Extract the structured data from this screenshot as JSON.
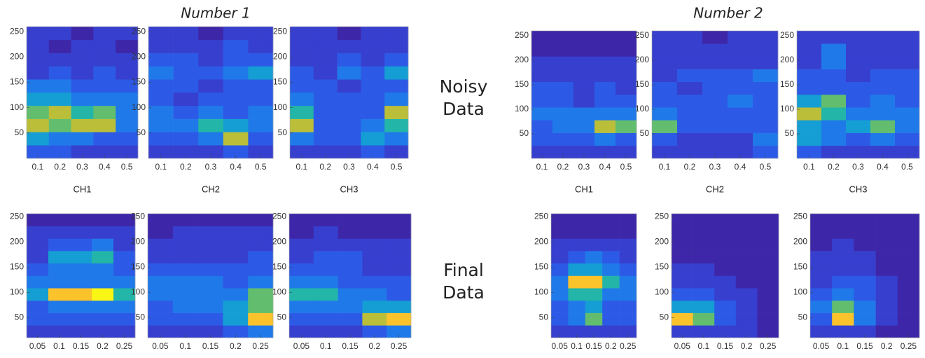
{
  "titles": [
    "Number 1",
    "Number 2"
  ],
  "row_labels": [
    "Noisy Data",
    "Final Data"
  ],
  "chart_data": [
    {
      "type": "heatmap",
      "xlabel": "CH1",
      "xlim": [
        0.05,
        0.55
      ],
      "ylim": [
        0,
        260
      ],
      "xticks": [
        0.1,
        0.2,
        0.3,
        0.4,
        0.5
      ],
      "yticks": [
        50,
        100,
        150,
        200,
        250
      ],
      "z": [
        [
          2,
          2,
          1,
          1,
          1
        ],
        [
          4,
          3,
          3,
          2,
          2
        ],
        [
          7,
          6,
          7,
          7,
          3
        ],
        [
          6,
          7,
          5,
          6,
          3
        ],
        [
          4,
          4,
          3,
          3,
          3
        ],
        [
          3,
          3,
          2,
          2,
          2
        ],
        [
          1,
          2,
          1,
          2,
          1
        ],
        [
          1,
          1,
          1,
          1,
          1
        ],
        [
          1,
          0,
          1,
          1,
          0
        ],
        [
          1,
          1,
          0,
          1,
          1
        ]
      ]
    },
    {
      "type": "heatmap",
      "xlabel": "CH2",
      "xlim": [
        0.05,
        0.55
      ],
      "ylim": [
        0,
        260
      ],
      "xticks": [
        0.1,
        0.2,
        0.3,
        0.4,
        0.5
      ],
      "yticks": [
        50,
        100,
        150,
        200,
        250
      ],
      "z": [
        [
          1,
          1,
          1,
          2,
          1
        ],
        [
          2,
          2,
          3,
          7,
          2
        ],
        [
          3,
          3,
          5,
          4,
          3
        ],
        [
          3,
          2,
          3,
          2,
          3
        ],
        [
          2,
          1,
          2,
          2,
          2
        ],
        [
          2,
          2,
          1,
          2,
          2
        ],
        [
          3,
          2,
          2,
          3,
          4
        ],
        [
          2,
          2,
          1,
          2,
          2
        ],
        [
          1,
          1,
          1,
          2,
          1
        ],
        [
          1,
          1,
          0,
          1,
          1
        ]
      ]
    },
    {
      "type": "heatmap",
      "xlabel": "CH3",
      "xlim": [
        0.05,
        0.55
      ],
      "ylim": [
        0,
        260
      ],
      "xticks": [
        0.1,
        0.2,
        0.3,
        0.4,
        0.5
      ],
      "yticks": [
        50,
        100,
        150,
        200,
        250
      ],
      "z": [
        [
          1,
          1,
          1,
          2,
          1
        ],
        [
          3,
          2,
          2,
          4,
          3
        ],
        [
          7,
          2,
          2,
          3,
          5
        ],
        [
          5,
          2,
          2,
          2,
          7
        ],
        [
          3,
          2,
          2,
          2,
          3
        ],
        [
          2,
          2,
          1,
          2,
          2
        ],
        [
          2,
          1,
          3,
          2,
          4
        ],
        [
          1,
          1,
          2,
          1,
          2
        ],
        [
          1,
          1,
          1,
          1,
          1
        ],
        [
          1,
          1,
          0,
          1,
          1
        ]
      ]
    },
    {
      "type": "heatmap",
      "xlabel": "CH1",
      "xlim": [
        0.05,
        0.55
      ],
      "ylim": [
        0,
        260
      ],
      "xticks": [
        0.1,
        0.2,
        0.3,
        0.4,
        0.5
      ],
      "yticks": [
        50,
        100,
        150,
        200,
        250
      ],
      "z": [
        [
          1,
          1,
          1,
          1,
          1
        ],
        [
          2,
          2,
          2,
          3,
          2
        ],
        [
          2,
          3,
          3,
          7,
          6
        ],
        [
          3,
          3,
          3,
          3,
          3
        ],
        [
          2,
          2,
          1,
          2,
          2
        ],
        [
          2,
          2,
          1,
          2,
          1
        ],
        [
          1,
          1,
          1,
          1,
          1
        ],
        [
          1,
          1,
          1,
          1,
          1
        ],
        [
          0,
          0,
          0,
          0,
          0
        ],
        [
          0,
          0,
          0,
          0,
          0
        ]
      ]
    },
    {
      "type": "heatmap",
      "xlabel": "CH2",
      "xlim": [
        0.05,
        0.55
      ],
      "ylim": [
        0,
        260
      ],
      "xticks": [
        0.1,
        0.2,
        0.3,
        0.4,
        0.5
      ],
      "yticks": [
        50,
        100,
        150,
        200,
        250
      ],
      "z": [
        [
          1,
          1,
          1,
          1,
          2
        ],
        [
          2,
          1,
          1,
          1,
          3
        ],
        [
          6,
          2,
          2,
          2,
          2
        ],
        [
          3,
          2,
          2,
          2,
          2
        ],
        [
          2,
          2,
          2,
          3,
          2
        ],
        [
          2,
          1,
          2,
          2,
          2
        ],
        [
          1,
          2,
          2,
          2,
          3
        ],
        [
          1,
          1,
          1,
          1,
          1
        ],
        [
          1,
          1,
          1,
          1,
          1
        ],
        [
          1,
          1,
          0,
          1,
          1
        ]
      ]
    },
    {
      "type": "heatmap",
      "xlabel": "CH3",
      "xlim": [
        0.05,
        0.55
      ],
      "ylim": [
        0,
        260
      ],
      "xticks": [
        0.1,
        0.2,
        0.3,
        0.4,
        0.5
      ],
      "yticks": [
        50,
        100,
        150,
        200,
        250
      ],
      "z": [
        [
          2,
          1,
          1,
          1,
          1
        ],
        [
          4,
          3,
          2,
          3,
          2
        ],
        [
          4,
          3,
          4,
          6,
          3
        ],
        [
          7,
          5,
          3,
          3,
          3
        ],
        [
          4,
          6,
          2,
          3,
          2
        ],
        [
          2,
          2,
          2,
          2,
          2
        ],
        [
          2,
          2,
          1,
          2,
          2
        ],
        [
          1,
          3,
          1,
          1,
          1
        ],
        [
          1,
          3,
          1,
          1,
          1
        ],
        [
          1,
          1,
          1,
          1,
          1
        ]
      ]
    },
    {
      "type": "heatmap",
      "xlim": [
        0.025,
        0.275
      ],
      "ylim": [
        10,
        256
      ],
      "xticks": [
        0.05,
        0.1,
        0.15,
        0.2,
        0.25
      ],
      "yticks": [
        50,
        100,
        150,
        200,
        250
      ],
      "z": [
        [
          1,
          1,
          1,
          1,
          1
        ],
        [
          2,
          2,
          2,
          2,
          2
        ],
        [
          2,
          3,
          3,
          3,
          3
        ],
        [
          4,
          8,
          8,
          9,
          5
        ],
        [
          3,
          3,
          3,
          3,
          3
        ],
        [
          2,
          3,
          3,
          3,
          2
        ],
        [
          1,
          4,
          4,
          5,
          2
        ],
        [
          1,
          2,
          2,
          3,
          1
        ],
        [
          1,
          1,
          1,
          1,
          1
        ],
        [
          0,
          0,
          0,
          0,
          0
        ]
      ]
    },
    {
      "type": "heatmap",
      "xlim": [
        0.025,
        0.275
      ],
      "ylim": [
        10,
        256
      ],
      "xticks": [
        0.05,
        0.1,
        0.15,
        0.2,
        0.25
      ],
      "yticks": [
        50,
        100,
        150,
        200,
        250
      ],
      "z": [
        [
          1,
          1,
          1,
          2,
          3
        ],
        [
          2,
          2,
          2,
          4,
          8
        ],
        [
          2,
          3,
          3,
          4,
          6
        ],
        [
          3,
          3,
          3,
          3,
          6
        ],
        [
          3,
          3,
          3,
          2,
          3
        ],
        [
          2,
          2,
          2,
          2,
          2
        ],
        [
          1,
          1,
          1,
          1,
          2
        ],
        [
          1,
          1,
          1,
          1,
          1
        ],
        [
          0,
          1,
          1,
          1,
          1
        ],
        [
          0,
          0,
          0,
          0,
          0
        ]
      ]
    },
    {
      "type": "heatmap",
      "xlim": [
        0.025,
        0.275
      ],
      "ylim": [
        10,
        256
      ],
      "xticks": [
        0.05,
        0.1,
        0.15,
        0.2,
        0.25
      ],
      "yticks": [
        50,
        100,
        150,
        200,
        250
      ],
      "z": [
        [
          1,
          1,
          1,
          2,
          3
        ],
        [
          2,
          2,
          2,
          7,
          8
        ],
        [
          3,
          3,
          3,
          4,
          4
        ],
        [
          5,
          5,
          3,
          3,
          2
        ],
        [
          3,
          3,
          2,
          2,
          2
        ],
        [
          2,
          2,
          2,
          1,
          1
        ],
        [
          1,
          2,
          2,
          1,
          1
        ],
        [
          1,
          1,
          1,
          1,
          1
        ],
        [
          0,
          1,
          0,
          0,
          0
        ],
        [
          0,
          0,
          0,
          0,
          0
        ]
      ]
    },
    {
      "type": "heatmap",
      "xlim": [
        0.025,
        0.275
      ],
      "ylim": [
        10,
        256
      ],
      "xticks": [
        0.05,
        0.1,
        0.15,
        0.2,
        0.25
      ],
      "yticks": [
        50,
        100,
        150,
        200,
        250
      ],
      "z": [
        [
          1,
          1,
          1,
          1,
          1
        ],
        [
          2,
          3,
          6,
          2,
          2
        ],
        [
          2,
          3,
          4,
          2,
          2
        ],
        [
          3,
          5,
          5,
          3,
          3
        ],
        [
          3,
          8,
          8,
          5,
          3
        ],
        [
          2,
          4,
          4,
          3,
          2
        ],
        [
          1,
          2,
          3,
          2,
          1
        ],
        [
          1,
          1,
          1,
          1,
          1
        ],
        [
          0,
          0,
          0,
          0,
          0
        ],
        [
          0,
          0,
          0,
          0,
          0
        ]
      ]
    },
    {
      "type": "heatmap",
      "xlim": [
        0.025,
        0.275
      ],
      "ylim": [
        10,
        256
      ],
      "xticks": [
        0.05,
        0.1,
        0.15,
        0.2,
        0.25
      ],
      "yticks": [
        50,
        100,
        150,
        200,
        250
      ],
      "z": [
        [
          1,
          1,
          1,
          1,
          0
        ],
        [
          8,
          6,
          2,
          1,
          0
        ],
        [
          4,
          4,
          2,
          1,
          0
        ],
        [
          2,
          2,
          1,
          1,
          0
        ],
        [
          1,
          1,
          1,
          0,
          0
        ],
        [
          1,
          1,
          0,
          0,
          0
        ],
        [
          0,
          0,
          0,
          0,
          0
        ],
        [
          0,
          0,
          0,
          0,
          0
        ],
        [
          0,
          0,
          0,
          0,
          0
        ],
        [
          0,
          0,
          0,
          0,
          0
        ]
      ]
    },
    {
      "type": "heatmap",
      "xlim": [
        0.025,
        0.275
      ],
      "ylim": [
        10,
        256
      ],
      "xticks": [
        0.05,
        0.1,
        0.15,
        0.2,
        0.25
      ],
      "yticks": [
        50,
        100,
        150,
        200,
        250
      ],
      "z": [
        [
          1,
          1,
          1,
          0,
          0
        ],
        [
          2,
          8,
          3,
          1,
          0
        ],
        [
          3,
          6,
          3,
          1,
          0
        ],
        [
          2,
          3,
          2,
          1,
          0
        ],
        [
          1,
          2,
          2,
          1,
          0
        ],
        [
          1,
          1,
          1,
          0,
          0
        ],
        [
          1,
          1,
          1,
          0,
          0
        ],
        [
          0,
          1,
          0,
          0,
          0
        ],
        [
          0,
          0,
          0,
          0,
          0
        ],
        [
          0,
          0,
          0,
          0,
          0
        ]
      ]
    }
  ]
}
